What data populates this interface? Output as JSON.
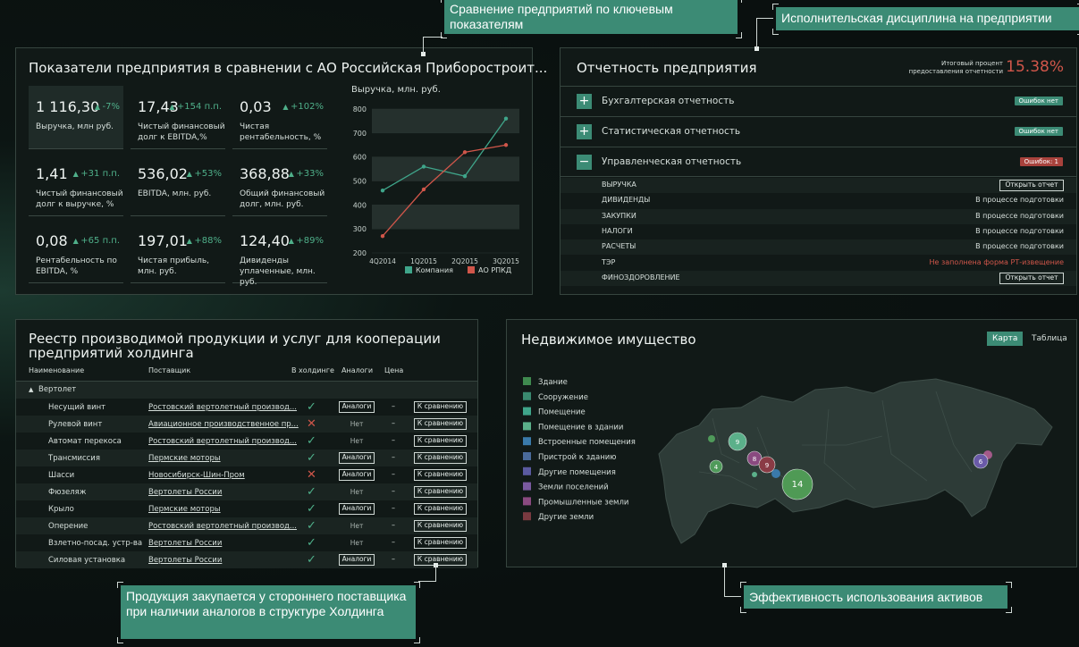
{
  "callouts": [
    "Сравнение предприятий по ключевым показателям",
    "Исполнительская дисциплина на предприятии",
    "Продукция закупается у стороннего поставщика при наличии аналогов в структуре Холдинга",
    "Эффективность использования активов"
  ],
  "kpi_panel": {
    "title": "Показатели предприятия в сравнении с АО Российская Приборостроит...",
    "kpis": [
      {
        "value": "1 116,30",
        "delta": "-7%",
        "label": "Выручка, млн руб."
      },
      {
        "value": "17,43",
        "delta": "+154 п.п.",
        "label": "Чистый финансовый долг к EBITDA,%"
      },
      {
        "value": "0,03",
        "delta": "+102%",
        "label": "Чистая рентабельность, %"
      },
      {
        "value": "1,41",
        "delta": "+31 п.п.",
        "label": "Чистый финансовый долг к выручке, %"
      },
      {
        "value": "536,02",
        "delta": "+53%",
        "label": "EBITDA, млн. руб."
      },
      {
        "value": "368,88",
        "delta": "+33%",
        "label": "Общий финансовый долг, млн. руб."
      },
      {
        "value": "0,08",
        "delta": "+65 п.п.",
        "label": "Рентабельность по EBITDA, %"
      },
      {
        "value": "197,01",
        "delta": "+88%",
        "label": "Чистая прибыль, млн. руб."
      },
      {
        "value": "124,40",
        "delta": "+89%",
        "label": "Дивиденды уплаченные, млн. руб."
      }
    ],
    "chart": {
      "type": "line",
      "title": "Выручка, млн. руб.",
      "categories": [
        "4Q2014",
        "1Q2015",
        "2Q2015",
        "3Q2015"
      ],
      "series": [
        {
          "name": "Компания",
          "color": "#3fa58a",
          "values": [
            460,
            560,
            520,
            760
          ]
        },
        {
          "name": "АО РПКД",
          "color": "#d0564a",
          "values": [
            270,
            465,
            620,
            650
          ]
        }
      ],
      "ylim": [
        200,
        800
      ],
      "yticks": [
        200,
        300,
        400,
        500,
        600,
        700,
        800
      ]
    }
  },
  "reports": {
    "title": "Отчетность предприятия",
    "summary_label": "Итоговый процент предоставления отчетности",
    "summary_value": "15.38%",
    "sections": [
      {
        "name": "Бухгалтерская отчетность",
        "status": "Ошибок нет",
        "error": false,
        "expanded": false
      },
      {
        "name": "Статистическая отчетность",
        "status": "Ошибок нет",
        "error": false,
        "expanded": false
      },
      {
        "name": "Управленческая отчетность",
        "status": "Ошибок: 1",
        "error": true,
        "expanded": true
      }
    ],
    "rows": [
      {
        "name": "ВЫРУЧКА",
        "state": "Открыть отчет",
        "kind": "button"
      },
      {
        "name": "ДИВИДЕНДЫ",
        "state": "В процессе подготовки",
        "kind": "text"
      },
      {
        "name": "ЗАКУПКИ",
        "state": "В процессе подготовки",
        "kind": "text"
      },
      {
        "name": "НАЛОГИ",
        "state": "В процессе подготовки",
        "kind": "text"
      },
      {
        "name": "РАСЧЕТЫ",
        "state": "В процессе подготовки",
        "kind": "text"
      },
      {
        "name": "ТЭР",
        "state": "Не заполнена форма РТ-извещение",
        "kind": "error"
      },
      {
        "name": "ФИНОЗДОРОВЛЕНИЕ",
        "state": "Открыть отчет",
        "kind": "button"
      }
    ]
  },
  "registry": {
    "title": "Реестр производимой продукции и услуг для кооперации предприятий холдинга",
    "columns": [
      "Наименование",
      "Поставщик",
      "В холдинге",
      "Аналоги",
      "Цена"
    ],
    "group": "Вертолет",
    "compare_label": "К сравнению",
    "rows": [
      {
        "name": "Несущий винт",
        "supplier": "Ростовский вертолетный производ...",
        "in_holding": true,
        "analog": "Аналоги",
        "has_analog": true,
        "price": "–"
      },
      {
        "name": "Рулевой винт",
        "supplier": "Авиационное производственное пр...",
        "in_holding": false,
        "analog": "Нет",
        "has_analog": false,
        "price": "–"
      },
      {
        "name": "Автомат перекоса",
        "supplier": "Ростовский вертолетный производ...",
        "in_holding": true,
        "analog": "Нет",
        "has_analog": false,
        "price": "–"
      },
      {
        "name": "Трансмиссия",
        "supplier": "Пермские моторы",
        "in_holding": true,
        "analog": "Аналоги",
        "has_analog": true,
        "price": "–"
      },
      {
        "name": "Шасси",
        "supplier": "Новосибирск-Шин-Пром",
        "in_holding": false,
        "analog": "Аналоги",
        "has_analog": true,
        "price": "–"
      },
      {
        "name": "Фюзеляж",
        "supplier": "Вертолеты России",
        "in_holding": true,
        "analog": "Нет",
        "has_analog": false,
        "price": "–"
      },
      {
        "name": "Крыло",
        "supplier": "Пермские моторы",
        "in_holding": true,
        "analog": "Аналоги",
        "has_analog": true,
        "price": "–"
      },
      {
        "name": "Оперение",
        "supplier": "Ростовский вертолетный производ...",
        "in_holding": true,
        "analog": "Нет",
        "has_analog": false,
        "price": "–"
      },
      {
        "name": "Взлетно-посад. устр-ва",
        "supplier": "Вертолеты России",
        "in_holding": true,
        "analog": "Нет",
        "has_analog": false,
        "price": "–"
      },
      {
        "name": "Силовая установка",
        "supplier": "Вертолеты России",
        "in_holding": true,
        "analog": "Аналоги",
        "has_analog": true,
        "price": "–"
      }
    ]
  },
  "property": {
    "title": "Недвижимое имущество",
    "tabs": [
      "Карта",
      "Таблица"
    ],
    "legend": [
      {
        "name": "Здание",
        "color": "#3f8a4f"
      },
      {
        "name": "Сооружение",
        "color": "#3a8a70"
      },
      {
        "name": "Помещение",
        "color": "#3fa58a"
      },
      {
        "name": "Помещение в здании",
        "color": "#5bb08a"
      },
      {
        "name": "Встроенные помещения",
        "color": "#3a7aaa"
      },
      {
        "name": "Пристрой к зданию",
        "color": "#4a6a9a"
      },
      {
        "name": "Другие помещения",
        "color": "#5a5aa0"
      },
      {
        "name": "Земли поселений",
        "color": "#7a5aa0"
      },
      {
        "name": "Промышленные земли",
        "color": "#8a4a80"
      },
      {
        "name": "Другие земли",
        "color": "#7a3a40"
      }
    ],
    "bubbles": [
      {
        "label": "9",
        "color": "#5bb08a"
      },
      {
        "label": "4",
        "color": "#4f9a5a"
      },
      {
        "label": "8",
        "color": "#8a4a80"
      },
      {
        "label": "9",
        "color": "#8a3b45"
      },
      {
        "label": "14",
        "color": "#4f9a55"
      },
      {
        "label": "6",
        "color": "#6a5aa8"
      }
    ]
  }
}
